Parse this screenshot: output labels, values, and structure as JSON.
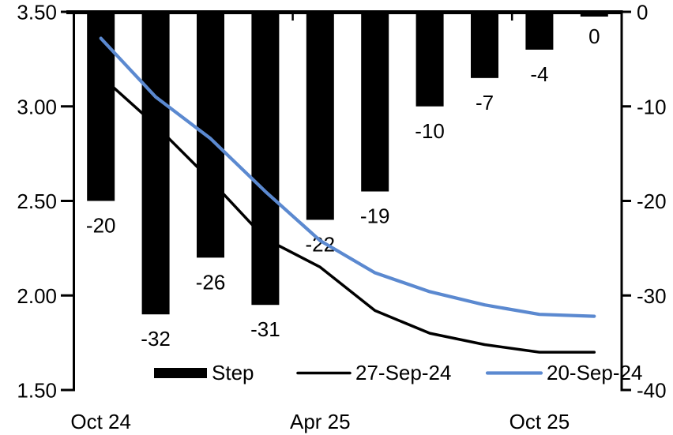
{
  "chart_data": {
    "type": "bar+line",
    "title": "",
    "background": "#ffffff",
    "x_axis": {
      "n_slots": 10,
      "tick_labels": [
        {
          "label": "Oct 24",
          "slot": 0
        },
        {
          "label": "Apr 25",
          "slot": 4
        },
        {
          "label": "Oct 25",
          "slot": 8
        }
      ],
      "boundary_tick_slots": [
        4,
        8
      ]
    },
    "left_axis": {
      "min": 1.5,
      "max": 3.5,
      "ticks": [
        {
          "label": "3.50",
          "value": 3.5
        },
        {
          "label": "3.00",
          "value": 3.0
        },
        {
          "label": "2.50",
          "value": 2.5
        },
        {
          "label": "2.00",
          "value": 2.0
        },
        {
          "label": "1.50",
          "value": 1.5
        }
      ]
    },
    "right_axis": {
      "min": -40,
      "max": 0,
      "ticks": [
        {
          "label": "0",
          "value": 0
        },
        {
          "label": "-10",
          "value": -10
        },
        {
          "label": "-20",
          "value": -20
        },
        {
          "label": "-30",
          "value": -30
        },
        {
          "label": "-40",
          "value": -40
        }
      ]
    },
    "bars": {
      "name": "Step",
      "axis": "right",
      "color": "#000000",
      "values": [
        -20,
        -32,
        -26,
        -31,
        -22,
        -19,
        -10,
        -7,
        -4,
        0
      ],
      "labels": [
        "-20",
        "-32",
        "-26",
        "-31",
        "-22",
        "-19",
        "-10",
        "-7",
        "-4",
        "0"
      ]
    },
    "lines": [
      {
        "name": "27-Sep-24",
        "axis": "left",
        "color": "#000000",
        "values": [
          3.16,
          2.9,
          2.61,
          2.3,
          2.15,
          1.92,
          1.8,
          1.74,
          1.7,
          1.7
        ]
      },
      {
        "name": "20-Sep-24",
        "axis": "left",
        "color": "#5B89D0",
        "values": [
          3.36,
          3.05,
          2.83,
          2.55,
          2.29,
          2.12,
          2.02,
          1.95,
          1.9,
          1.89
        ]
      }
    ],
    "legend": [
      {
        "label": "Step",
        "swatch": "bar",
        "color": "#000000"
      },
      {
        "label": "27-Sep-24",
        "swatch": "line",
        "color": "#000000"
      },
      {
        "label": "20-Sep-24",
        "swatch": "line",
        "color": "#5B89D0"
      }
    ]
  }
}
